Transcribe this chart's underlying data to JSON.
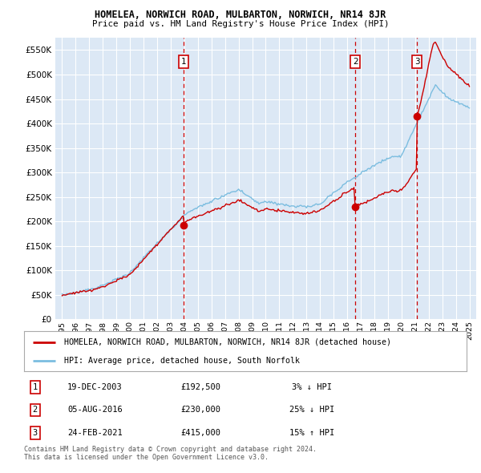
{
  "title": "HOMELEA, NORWICH ROAD, MULBARTON, NORWICH, NR14 8JR",
  "subtitle": "Price paid vs. HM Land Registry's House Price Index (HPI)",
  "ylim": [
    0,
    575000
  ],
  "yticks": [
    0,
    50000,
    100000,
    150000,
    200000,
    250000,
    300000,
    350000,
    400000,
    450000,
    500000,
    550000
  ],
  "xlim_start": 1994.5,
  "xlim_end": 2025.5,
  "sale_dates": [
    2003.97,
    2016.59,
    2021.15
  ],
  "sale_prices": [
    192500,
    230000,
    415000
  ],
  "sale_labels": [
    "1",
    "2",
    "3"
  ],
  "hpi_color": "#7bbde0",
  "sale_color": "#cc0000",
  "vline_color": "#cc0000",
  "dot_color": "#cc0000",
  "legend_label_sale": "HOMELEA, NORWICH ROAD, MULBARTON, NORWICH, NR14 8JR (detached house)",
  "legend_label_hpi": "HPI: Average price, detached house, South Norfolk",
  "table_rows": [
    {
      "num": "1",
      "date": "19-DEC-2003",
      "price": "£192,500",
      "change": "3% ↓ HPI"
    },
    {
      "num": "2",
      "date": "05-AUG-2016",
      "price": "£230,000",
      "change": "25% ↓ HPI"
    },
    {
      "num": "3",
      "date": "24-FEB-2021",
      "price": "£415,000",
      "change": "15% ↑ HPI"
    }
  ],
  "footer": "Contains HM Land Registry data © Crown copyright and database right 2024.\nThis data is licensed under the Open Government Licence v3.0.",
  "plot_bg": "#dce8f5"
}
